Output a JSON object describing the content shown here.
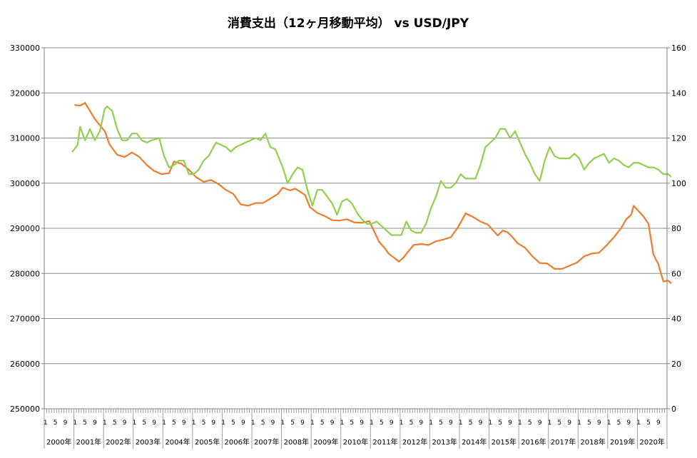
{
  "chart_data": {
    "type": "line",
    "title": "消費支出（12ヶ月移動平均） vs USD/JPY",
    "xlabel": "",
    "ylabel": "",
    "y_left": {
      "min": 250000,
      "max": 330000,
      "step": 10000,
      "ticks": [
        "250000",
        "260000",
        "270000",
        "280000",
        "290000",
        "300000",
        "310000",
        "320000",
        "330000"
      ]
    },
    "y_right": {
      "min": 0,
      "max": 160,
      "step": 20,
      "ticks": [
        "0",
        "20",
        "40",
        "60",
        "80",
        "100",
        "120",
        "140",
        "160"
      ]
    },
    "grid": true,
    "legend": "none",
    "x_start": "2000-01",
    "month_ticks": [
      "1",
      "5",
      "9"
    ],
    "years": [
      "2000年",
      "2001年",
      "2002年",
      "2003年",
      "2004年",
      "2005年",
      "2006年",
      "2007年",
      "2008年",
      "2009年",
      "2010年",
      "2011年",
      "2012年",
      "2013年",
      "2014年",
      "2015年",
      "2016年",
      "2017年",
      "2018年",
      "2019年",
      "2020年"
    ],
    "series": [
      {
        "axis": "left",
        "color": "#ED7D31",
        "points": [
          [
            "2001-01",
            317300
          ],
          [
            "2001-03",
            317200
          ],
          [
            "2001-05",
            317800
          ],
          [
            "2001-07",
            316000
          ],
          [
            "2001-09",
            314200
          ],
          [
            "2002-01",
            311500
          ],
          [
            "2002-03",
            308500
          ],
          [
            "2002-06",
            306300
          ],
          [
            "2002-09",
            305800
          ],
          [
            "2002-12",
            306800
          ],
          [
            "2003-03",
            305800
          ],
          [
            "2003-06",
            304000
          ],
          [
            "2003-09",
            302700
          ],
          [
            "2003-12",
            302000
          ],
          [
            "2004-03",
            302200
          ],
          [
            "2004-05",
            304800
          ],
          [
            "2004-08",
            304300
          ],
          [
            "2004-11",
            303000
          ],
          [
            "2005-02",
            301300
          ],
          [
            "2005-05",
            300300
          ],
          [
            "2005-08",
            300700
          ],
          [
            "2005-11",
            299800
          ],
          [
            "2006-02",
            298500
          ],
          [
            "2006-05",
            297600
          ],
          [
            "2006-08",
            295300
          ],
          [
            "2006-11",
            295000
          ],
          [
            "2007-02",
            295600
          ],
          [
            "2007-05",
            295600
          ],
          [
            "2007-08",
            296600
          ],
          [
            "2007-11",
            297600
          ],
          [
            "2008-01",
            299000
          ],
          [
            "2008-04",
            298400
          ],
          [
            "2008-06",
            298800
          ],
          [
            "2008-08",
            298100
          ],
          [
            "2008-10",
            297400
          ],
          [
            "2008-12",
            294700
          ],
          [
            "2009-03",
            293400
          ],
          [
            "2009-06",
            292700
          ],
          [
            "2009-09",
            291800
          ],
          [
            "2009-12",
            291700
          ],
          [
            "2010-03",
            292000
          ],
          [
            "2010-06",
            291300
          ],
          [
            "2010-09",
            291200
          ],
          [
            "2010-12",
            291600
          ],
          [
            "2011-02",
            289300
          ],
          [
            "2011-04",
            287000
          ],
          [
            "2011-06",
            285800
          ],
          [
            "2011-08",
            284300
          ],
          [
            "2011-10",
            283500
          ],
          [
            "2011-12",
            282600
          ],
          [
            "2012-02",
            283600
          ],
          [
            "2012-04",
            285000
          ],
          [
            "2012-06",
            286300
          ],
          [
            "2012-09",
            286500
          ],
          [
            "2012-12",
            286300
          ],
          [
            "2013-03",
            287100
          ],
          [
            "2013-06",
            287500
          ],
          [
            "2013-09",
            288000
          ],
          [
            "2013-12",
            290300
          ],
          [
            "2014-03",
            293300
          ],
          [
            "2014-06",
            292500
          ],
          [
            "2014-09",
            291500
          ],
          [
            "2014-12",
            290800
          ],
          [
            "2015-02",
            289600
          ],
          [
            "2015-04",
            288400
          ],
          [
            "2015-06",
            289500
          ],
          [
            "2015-08",
            289100
          ],
          [
            "2015-10",
            288000
          ],
          [
            "2015-12",
            286700
          ],
          [
            "2016-03",
            285700
          ],
          [
            "2016-06",
            283800
          ],
          [
            "2016-09",
            282300
          ],
          [
            "2016-12",
            282200
          ],
          [
            "2017-03",
            281000
          ],
          [
            "2017-06",
            281000
          ],
          [
            "2017-09",
            281700
          ],
          [
            "2017-12",
            282400
          ],
          [
            "2018-03",
            283800
          ],
          [
            "2018-06",
            284400
          ],
          [
            "2018-09",
            284600
          ],
          [
            "2018-12",
            286200
          ],
          [
            "2019-03",
            288000
          ],
          [
            "2019-06",
            290100
          ],
          [
            "2019-08",
            292000
          ],
          [
            "2019-10",
            293000
          ],
          [
            "2019-11",
            295000
          ],
          [
            "2020-01",
            293800
          ],
          [
            "2020-03",
            292600
          ],
          [
            "2020-05",
            291000
          ],
          [
            "2020-07",
            284200
          ],
          [
            "2020-09",
            282000
          ],
          [
            "2020-11",
            278200
          ],
          [
            "2021-01",
            278400
          ],
          [
            "2021-02",
            277900
          ]
        ]
      },
      {
        "axis": "right",
        "color": "#92D050",
        "points": [
          [
            "2000-12",
            114
          ],
          [
            "2001-02",
            117
          ],
          [
            "2001-03",
            125
          ],
          [
            "2001-05",
            119
          ],
          [
            "2001-07",
            124
          ],
          [
            "2001-09",
            119
          ],
          [
            "2001-11",
            123
          ],
          [
            "2002-01",
            133
          ],
          [
            "2002-02",
            134
          ],
          [
            "2002-04",
            132
          ],
          [
            "2002-06",
            124
          ],
          [
            "2002-08",
            119
          ],
          [
            "2002-10",
            119
          ],
          [
            "2002-12",
            122
          ],
          [
            "2003-02",
            122
          ],
          [
            "2003-04",
            119
          ],
          [
            "2003-06",
            118
          ],
          [
            "2003-08",
            119
          ],
          [
            "2003-11",
            120
          ],
          [
            "2004-01",
            112
          ],
          [
            "2004-03",
            107
          ],
          [
            "2004-05",
            108
          ],
          [
            "2004-07",
            110
          ],
          [
            "2004-09",
            110
          ],
          [
            "2004-11",
            104
          ],
          [
            "2005-01",
            104
          ],
          [
            "2005-03",
            106
          ],
          [
            "2005-05",
            110
          ],
          [
            "2005-07",
            112
          ],
          [
            "2005-10",
            118
          ],
          [
            "2005-12",
            117
          ],
          [
            "2006-02",
            116
          ],
          [
            "2006-04",
            114
          ],
          [
            "2006-06",
            116
          ],
          [
            "2006-08",
            117
          ],
          [
            "2006-10",
            118
          ],
          [
            "2006-12",
            119
          ],
          [
            "2007-02",
            120
          ],
          [
            "2007-04",
            119
          ],
          [
            "2007-06",
            122
          ],
          [
            "2007-08",
            116
          ],
          [
            "2007-10",
            115
          ],
          [
            "2008-01",
            107
          ],
          [
            "2008-03",
            100
          ],
          [
            "2008-05",
            104
          ],
          [
            "2008-07",
            107
          ],
          [
            "2008-09",
            106
          ],
          [
            "2008-11",
            97
          ],
          [
            "2009-01",
            90
          ],
          [
            "2009-03",
            97
          ],
          [
            "2009-05",
            97
          ],
          [
            "2009-07",
            94
          ],
          [
            "2009-09",
            91
          ],
          [
            "2009-11",
            86
          ],
          [
            "2010-01",
            92
          ],
          [
            "2010-03",
            93
          ],
          [
            "2010-05",
            91
          ],
          [
            "2010-07",
            87
          ],
          [
            "2010-09",
            84
          ],
          [
            "2010-11",
            82
          ],
          [
            "2011-01",
            82
          ],
          [
            "2011-03",
            83
          ],
          [
            "2011-05",
            81
          ],
          [
            "2011-07",
            79
          ],
          [
            "2011-09",
            77
          ],
          [
            "2011-11",
            77
          ],
          [
            "2012-01",
            77
          ],
          [
            "2012-03",
            83
          ],
          [
            "2012-05",
            79
          ],
          [
            "2012-07",
            78
          ],
          [
            "2012-09",
            78
          ],
          [
            "2012-11",
            82
          ],
          [
            "2013-01",
            89
          ],
          [
            "2013-03",
            94
          ],
          [
            "2013-05",
            101
          ],
          [
            "2013-07",
            98
          ],
          [
            "2013-09",
            98
          ],
          [
            "2013-11",
            100
          ],
          [
            "2014-01",
            104
          ],
          [
            "2014-03",
            102
          ],
          [
            "2014-05",
            102
          ],
          [
            "2014-07",
            102
          ],
          [
            "2014-09",
            108
          ],
          [
            "2014-11",
            116
          ],
          [
            "2015-01",
            118
          ],
          [
            "2015-03",
            120
          ],
          [
            "2015-05",
            124
          ],
          [
            "2015-07",
            124
          ],
          [
            "2015-09",
            120
          ],
          [
            "2015-11",
            123
          ],
          [
            "2016-01",
            118
          ],
          [
            "2016-03",
            113
          ],
          [
            "2016-05",
            109
          ],
          [
            "2016-07",
            104
          ],
          [
            "2016-09",
            101
          ],
          [
            "2016-11",
            110
          ],
          [
            "2017-01",
            116
          ],
          [
            "2017-03",
            112
          ],
          [
            "2017-05",
            111
          ],
          [
            "2017-07",
            111
          ],
          [
            "2017-09",
            111
          ],
          [
            "2017-11",
            113
          ],
          [
            "2018-01",
            111
          ],
          [
            "2018-03",
            106
          ],
          [
            "2018-05",
            109
          ],
          [
            "2018-07",
            111
          ],
          [
            "2018-09",
            112
          ],
          [
            "2018-11",
            113
          ],
          [
            "2019-01",
            109
          ],
          [
            "2019-03",
            111
          ],
          [
            "2019-05",
            110
          ],
          [
            "2019-07",
            108
          ],
          [
            "2019-09",
            107
          ],
          [
            "2019-11",
            109
          ],
          [
            "2020-01",
            109
          ],
          [
            "2020-03",
            108
          ],
          [
            "2020-05",
            107
          ],
          [
            "2020-07",
            107
          ],
          [
            "2020-09",
            106
          ],
          [
            "2020-11",
            104
          ],
          [
            "2021-01",
            104
          ],
          [
            "2021-02",
            103
          ]
        ]
      }
    ]
  }
}
